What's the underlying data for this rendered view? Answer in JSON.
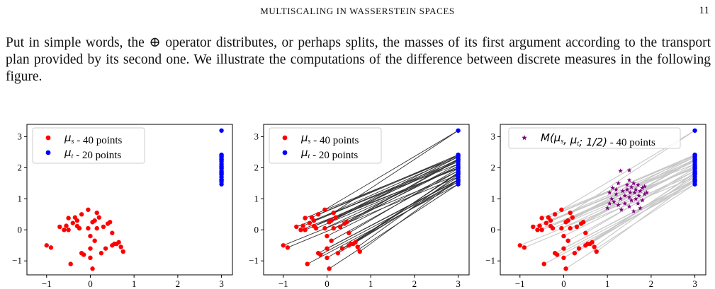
{
  "header": {
    "running_title": "MULTISCALING IN WASSERSTEIN SPACES",
    "page_number": "11"
  },
  "paragraph": "Put in simple words, the ⊕ operator distributes, or perhaps splits, the masses of its first argument according to the transport plan provided by its second one. We illustrate the computations of the difference between discrete measures in the following figure.",
  "colors": {
    "source": "#ff0000",
    "target": "#0000ff",
    "midpoint": "#800080",
    "plan_dark": "#333333",
    "plan_light": "#c8c8c8"
  },
  "chart_data": [
    {
      "type": "scatter",
      "title": "",
      "xlabel": "",
      "ylabel": "",
      "xlim": [
        -1.45,
        3.25
      ],
      "ylim": [
        -1.45,
        3.4
      ],
      "xticks": [
        -1,
        0,
        1,
        2,
        3
      ],
      "yticks": [
        -1,
        0,
        1,
        2,
        3
      ],
      "tick_labels_x": [
        "−1",
        "0",
        "1",
        "2",
        "3"
      ],
      "tick_labels_y": [
        "−1",
        "0",
        "1",
        "2",
        "3"
      ],
      "grid": false,
      "legend_position": "top-left",
      "legend": [
        {
          "label": "μ_s - 40 points",
          "symbol": "dot",
          "color": "#ff0000"
        },
        {
          "label": "μ_t - 20 points",
          "symbol": "dot",
          "color": "#0000ff"
        }
      ],
      "series": [
        {
          "role": "source",
          "x": [
            -1.0,
            -0.9,
            -0.7,
            -0.6,
            -0.55,
            -0.5,
            -0.45,
            -0.4,
            -0.35,
            -0.3,
            -0.3,
            -0.25,
            -0.2,
            -0.15,
            -0.05,
            -0.05,
            0.0,
            0.0,
            0.05,
            0.05,
            0.1,
            0.15,
            0.15,
            0.2,
            0.25,
            0.3,
            0.35,
            0.4,
            0.45,
            0.5,
            0.55,
            0.6,
            0.65,
            0.7,
            0.75,
            -0.5,
            0.0,
            0.1,
            -0.2,
            0.5
          ],
          "y": [
            -0.5,
            -0.57,
            0.1,
            0.0,
            0.13,
            0.0,
            -1.1,
            0.22,
            0.4,
            0.3,
            0.12,
            0.05,
            0.5,
            -0.8,
            0.05,
            0.65,
            -0.6,
            -0.9,
            0.25,
            -1.25,
            0.3,
            0.55,
            0.05,
            0.4,
            -0.75,
            0.1,
            -0.6,
            0.2,
            0.25,
            -0.5,
            -0.45,
            -0.45,
            -0.4,
            -0.55,
            -0.7,
            0.38,
            -0.2,
            -0.35,
            -0.75,
            -0.1
          ]
        },
        {
          "role": "target",
          "x": [
            3,
            3,
            3,
            3,
            3,
            3,
            3,
            3,
            3,
            3,
            3,
            3,
            3,
            3,
            3,
            3,
            3,
            3,
            3,
            3
          ],
          "y": [
            3.2,
            2.42,
            2.35,
            2.28,
            2.2,
            2.12,
            2.05,
            1.98,
            1.9,
            1.85,
            1.78,
            1.7,
            1.62,
            1.55,
            1.47,
            2.38,
            2.0,
            1.82,
            1.6,
            2.25
          ]
        }
      ]
    },
    {
      "type": "scatter",
      "title": "",
      "xlabel": "",
      "ylabel": "",
      "xlim": [
        -1.45,
        3.25
      ],
      "ylim": [
        -1.45,
        3.4
      ],
      "xticks": [
        -1,
        0,
        1,
        2,
        3
      ],
      "yticks": [
        -1,
        0,
        1,
        2,
        3
      ],
      "tick_labels_x": [
        "−1",
        "0",
        "1",
        "2",
        "3"
      ],
      "tick_labels_y": [
        "−1",
        "0",
        "1",
        "2",
        "3"
      ],
      "grid": false,
      "legend_position": "top-left",
      "legend": [
        {
          "label": "μ_s - 40 points",
          "symbol": "dot",
          "color": "#ff0000"
        },
        {
          "label": "μ_t - 20 points",
          "symbol": "dot",
          "color": "#0000ff"
        }
      ],
      "transport_lines": true,
      "series": [
        {
          "role": "source",
          "x": [
            -1.0,
            -0.9,
            -0.7,
            -0.6,
            -0.55,
            -0.5,
            -0.45,
            -0.4,
            -0.35,
            -0.3,
            -0.3,
            -0.25,
            -0.2,
            -0.15,
            -0.05,
            -0.05,
            0.0,
            0.0,
            0.05,
            0.05,
            0.1,
            0.15,
            0.15,
            0.2,
            0.25,
            0.3,
            0.35,
            0.4,
            0.45,
            0.5,
            0.55,
            0.6,
            0.65,
            0.7,
            0.75,
            -0.5,
            0.0,
            0.1,
            -0.2,
            0.5
          ],
          "y": [
            -0.5,
            -0.57,
            0.1,
            0.0,
            0.13,
            0.0,
            -1.1,
            0.22,
            0.4,
            0.3,
            0.12,
            0.05,
            0.5,
            -0.8,
            0.05,
            0.65,
            -0.6,
            -0.9,
            0.25,
            -1.25,
            0.3,
            0.55,
            0.05,
            0.4,
            -0.75,
            0.1,
            -0.6,
            0.2,
            0.25,
            -0.5,
            -0.45,
            -0.45,
            -0.4,
            -0.55,
            -0.7,
            0.38,
            -0.2,
            -0.35,
            -0.75,
            -0.1
          ]
        },
        {
          "role": "target",
          "x": [
            3,
            3,
            3,
            3,
            3,
            3,
            3,
            3,
            3,
            3,
            3,
            3,
            3,
            3,
            3,
            3,
            3,
            3,
            3,
            3
          ],
          "y": [
            3.2,
            2.42,
            2.35,
            2.28,
            2.2,
            2.12,
            2.05,
            1.98,
            1.9,
            1.85,
            1.78,
            1.7,
            1.62,
            1.55,
            1.47,
            2.38,
            2.0,
            1.82,
            1.6,
            2.25
          ]
        }
      ]
    },
    {
      "type": "scatter",
      "title": "",
      "xlabel": "",
      "ylabel": "",
      "xlim": [
        -1.45,
        3.25
      ],
      "ylim": [
        -1.45,
        3.4
      ],
      "xticks": [
        -1,
        0,
        1,
        2,
        3
      ],
      "yticks": [
        -1,
        0,
        1,
        2,
        3
      ],
      "tick_labels_x": [
        "−1",
        "0",
        "1",
        "2",
        "3"
      ],
      "tick_labels_y": [
        "−1",
        "0",
        "1",
        "2",
        "3"
      ],
      "grid": false,
      "legend_position": "top-center",
      "legend": [
        {
          "label": "M(μ_s, μ_t; 1/2) - 40 points",
          "symbol": "star",
          "color": "#800080"
        }
      ],
      "transport_lines": true,
      "series": [
        {
          "role": "source",
          "x": [
            -1.0,
            -0.9,
            -0.7,
            -0.6,
            -0.55,
            -0.5,
            -0.45,
            -0.4,
            -0.35,
            -0.3,
            -0.3,
            -0.25,
            -0.2,
            -0.15,
            -0.05,
            -0.05,
            0.0,
            0.0,
            0.05,
            0.05,
            0.1,
            0.15,
            0.15,
            0.2,
            0.25,
            0.3,
            0.35,
            0.4,
            0.45,
            0.5,
            0.55,
            0.6,
            0.65,
            0.7,
            0.75,
            -0.5,
            0.0,
            0.1,
            -0.2,
            0.5
          ],
          "y": [
            -0.5,
            -0.57,
            0.1,
            0.0,
            0.13,
            0.0,
            -1.1,
            0.22,
            0.4,
            0.3,
            0.12,
            0.05,
            0.5,
            -0.8,
            0.05,
            0.65,
            -0.6,
            -0.9,
            0.25,
            -1.25,
            0.3,
            0.55,
            0.05,
            0.4,
            -0.75,
            0.1,
            -0.6,
            0.2,
            0.25,
            -0.5,
            -0.45,
            -0.45,
            -0.4,
            -0.55,
            -0.7,
            0.38,
            -0.2,
            -0.35,
            -0.75,
            -0.1
          ]
        },
        {
          "role": "target",
          "x": [
            3,
            3,
            3,
            3,
            3,
            3,
            3,
            3,
            3,
            3,
            3,
            3,
            3,
            3,
            3,
            3,
            3,
            3,
            3,
            3
          ],
          "y": [
            3.2,
            2.42,
            2.35,
            2.28,
            2.2,
            2.12,
            2.05,
            1.98,
            1.9,
            1.85,
            1.78,
            1.7,
            1.62,
            1.55,
            1.47,
            2.38,
            2.0,
            1.82,
            1.6,
            2.25
          ]
        },
        {
          "role": "midpoint",
          "x": [
            1.0,
            1.05,
            1.05,
            1.1,
            1.12,
            1.15,
            1.2,
            1.2,
            1.25,
            1.25,
            1.3,
            1.3,
            1.32,
            1.35,
            1.4,
            1.4,
            1.45,
            1.45,
            1.5,
            1.5,
            1.5,
            1.52,
            1.55,
            1.55,
            1.6,
            1.6,
            1.62,
            1.65,
            1.65,
            1.7,
            1.7,
            1.72,
            1.75,
            1.75,
            1.8,
            1.8,
            1.85,
            1.85,
            1.9,
            1.5
          ],
          "y": [
            0.7,
            0.85,
            1.2,
            1.0,
            1.35,
            0.9,
            1.3,
            1.15,
            1.5,
            0.8,
            1.0,
            1.9,
            0.65,
            1.25,
            1.1,
            0.85,
            1.45,
            1.3,
            0.75,
            1.6,
            1.05,
            1.2,
            1.38,
            0.95,
            1.5,
            0.6,
            1.2,
            1.0,
            1.3,
            0.85,
            1.45,
            1.1,
            1.25,
            0.7,
            1.35,
            0.95,
            1.15,
            1.4,
            1.2,
            1.92
          ]
        }
      ]
    }
  ]
}
